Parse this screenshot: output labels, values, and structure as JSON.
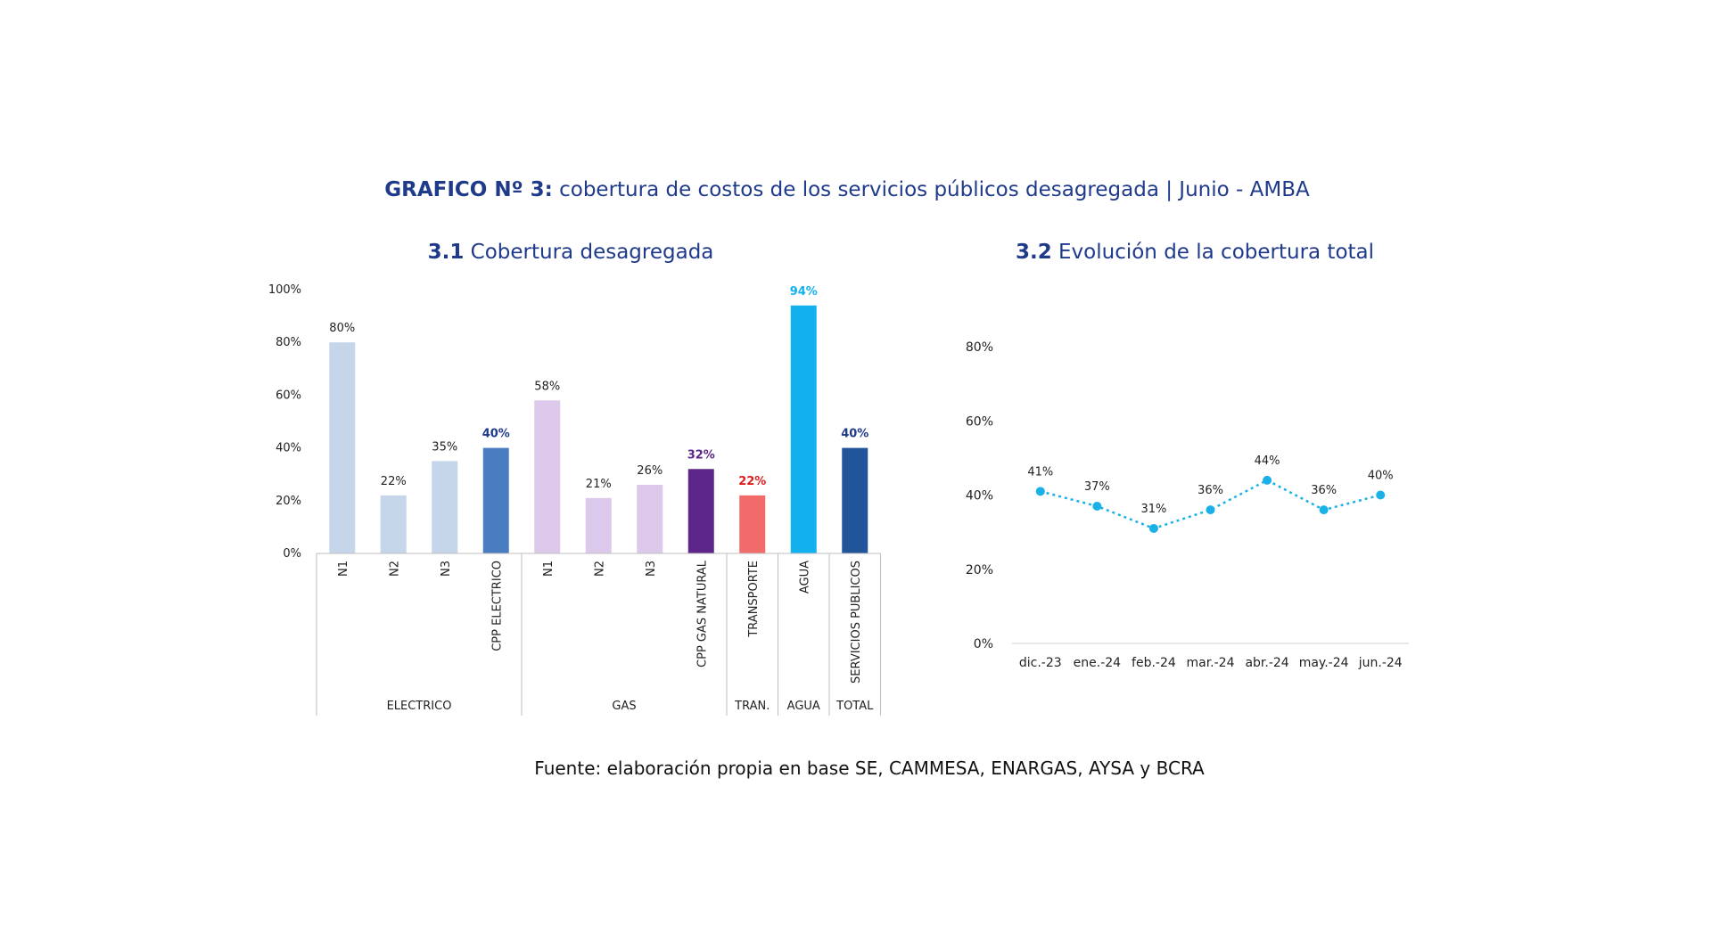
{
  "header": {
    "title_bold": "GRAFICO Nº 3:",
    "title_rest": " cobertura de costos de los servicios públicos desagregada | Junio - AMBA"
  },
  "footer": {
    "source": "Fuente: elaboración propia en base SE, CAMMESA, ENARGAS, AYSA y BCRA"
  },
  "chart_data": [
    {
      "type": "bar",
      "title_num": "3.1",
      "title": "Cobertura desagregada",
      "ylim": [
        0,
        100
      ],
      "yticks": [
        "0%",
        "20%",
        "40%",
        "60%",
        "80%",
        "100%"
      ],
      "categories": [
        "N1",
        "N2",
        "N3",
        "CPP ELECTRICO",
        "N1",
        "N2",
        "N3",
        "CPP GAS NATURAL",
        "TRANSPORTE",
        "AGUA",
        "SERVICIOS PUBLICOS"
      ],
      "values": [
        80,
        22,
        35,
        40,
        58,
        21,
        26,
        32,
        22,
        94,
        40
      ],
      "labels": [
        "80%",
        "22%",
        "35%",
        "40%",
        "58%",
        "21%",
        "26%",
        "32%",
        "22%",
        "94%",
        "40%"
      ],
      "colors": [
        "#c5d6ea",
        "#c5d6ea",
        "#c5d6ea",
        "#4a7cc1",
        "#dcc8ea",
        "#dcc8ea",
        "#dcc8ea",
        "#5b2589",
        "#f26b6b",
        "#12b1ee",
        "#21559a"
      ],
      "label_colors": [
        "#222222",
        "#222222",
        "#222222",
        "#1f3a8a",
        "#222222",
        "#222222",
        "#222222",
        "#5b2589",
        "#e01d1d",
        "#12b1ee",
        "#1f3a8a"
      ],
      "groups": [
        {
          "name": "ELECTRICO",
          "count": 4
        },
        {
          "name": "GAS",
          "count": 4
        },
        {
          "name": "TRAN.",
          "count": 1
        },
        {
          "name": "AGUA",
          "count": 1
        },
        {
          "name": "TOTAL",
          "count": 1
        }
      ]
    },
    {
      "type": "line",
      "title_num": "3.2",
      "title": "Evolución de la cobertura total",
      "ylim": [
        0,
        80
      ],
      "yticks": [
        "0%",
        "20%",
        "40%",
        "60%",
        "80%"
      ],
      "x": [
        "dic.-23",
        "ene.-24",
        "feb.-24",
        "mar.-24",
        "abr.-24",
        "may.-24",
        "jun.-24"
      ],
      "values": [
        41,
        37,
        31,
        36,
        44,
        36,
        40
      ],
      "labels": [
        "41%",
        "37%",
        "31%",
        "36%",
        "44%",
        "36%",
        "40%"
      ],
      "color": "#1ab1e8"
    }
  ]
}
